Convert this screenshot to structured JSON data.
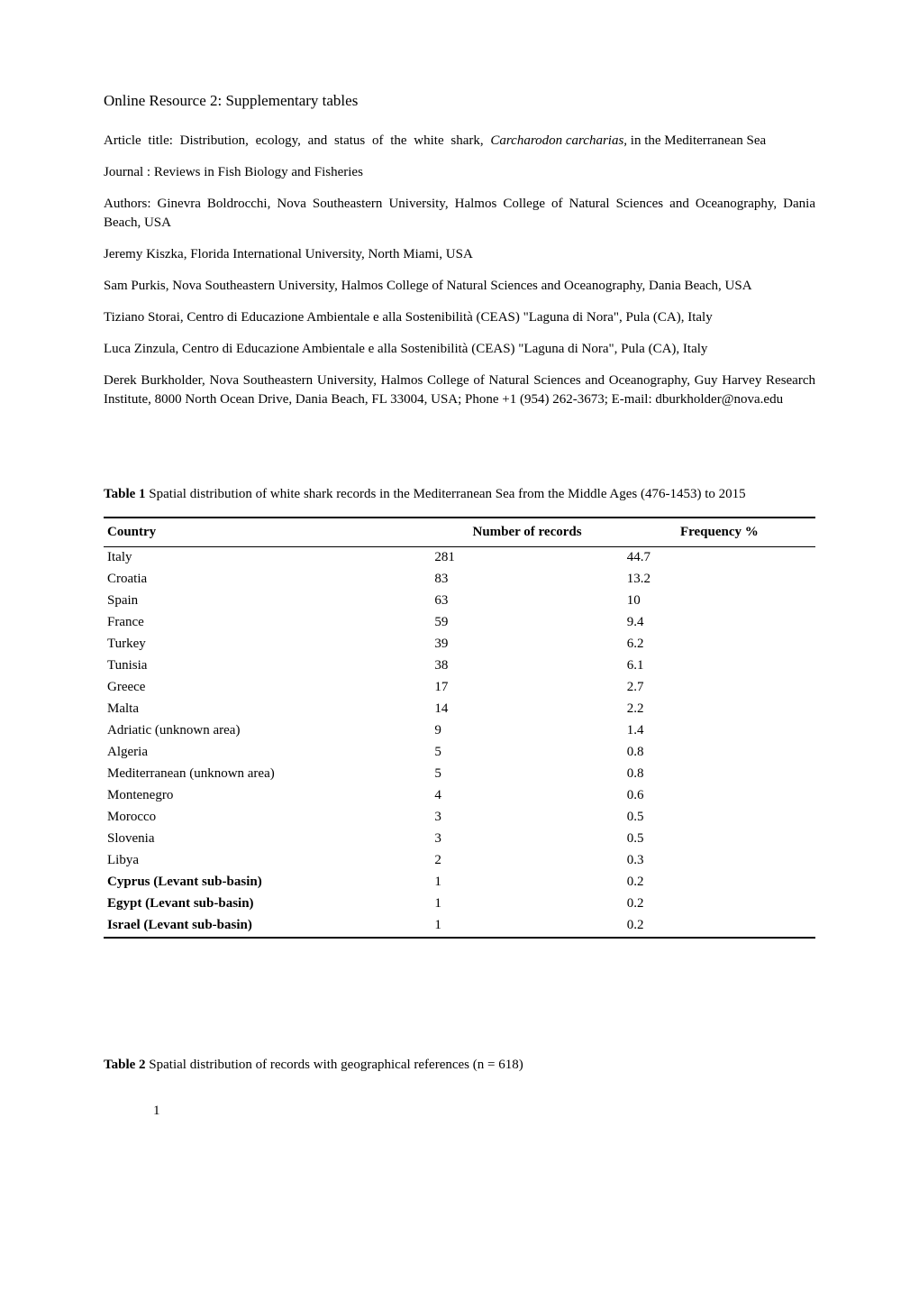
{
  "title": "Online Resource 2: Supplementary tables",
  "article_title_prefix": "Article title: Distribution, ecology, and status of the white shark, ",
  "article_species": "Carcharodon carcharias,",
  "article_title_suffix": " in the Mediterranean Sea",
  "journal": "Journal : Reviews in Fish Biology and Fisheries",
  "authors_line": "Authors: Ginevra Boldrocchi, Nova Southeastern University, Halmos College of Natural Sciences and Oceanography, Dania Beach, USA",
  "author2": "Jeremy Kiszka, Florida International University, North Miami, USA",
  "author3": "Sam Purkis, Nova Southeastern University, Halmos College of Natural Sciences and Oceanography, Dania Beach, USA",
  "author4": "Tiziano Storai, Centro di Educazione Ambientale e alla Sostenibilità (CEAS) \"Laguna di Nora\", Pula (CA), Italy",
  "author5": "Luca Zinzula, Centro di Educazione Ambientale e alla Sostenibilità (CEAS) \"Laguna di Nora\", Pula (CA), Italy",
  "author6": "Derek Burkholder, Nova Southeastern University, Halmos College of Natural Sciences and Oceanography, Guy Harvey Research Institute, 8000 North Ocean Drive, Dania Beach, FL 33004, USA; Phone +1 (954) 262-3673; E-mail: dburkholder@nova.edu",
  "table1_caption_label": "Table 1",
  "table1_caption_text": " Spatial distribution of white shark records in the Mediterranean Sea from the Middle Ages (476-1453) to 2015",
  "table1": {
    "headers": {
      "country": "Country",
      "records": "Number of records",
      "freq": "Frequency %"
    },
    "rows": [
      {
        "country": "Italy",
        "records": "281",
        "freq": "44.7",
        "bold": false
      },
      {
        "country": "Croatia",
        "records": "83",
        "freq": "13.2",
        "bold": false
      },
      {
        "country": "Spain",
        "records": "63",
        "freq": "10",
        "bold": false
      },
      {
        "country": "France",
        "records": "59",
        "freq": "9.4",
        "bold": false
      },
      {
        "country": "Turkey",
        "records": "39",
        "freq": "6.2",
        "bold": false
      },
      {
        "country": "Tunisia",
        "records": "38",
        "freq": "6.1",
        "bold": false
      },
      {
        "country": "Greece",
        "records": "17",
        "freq": "2.7",
        "bold": false
      },
      {
        "country": "Malta",
        "records": "14",
        "freq": "2.2",
        "bold": false
      },
      {
        "country": "Adriatic (unknown area)",
        "records": "9",
        "freq": "1.4",
        "bold": false
      },
      {
        "country": "Algeria",
        "records": "5",
        "freq": "0.8",
        "bold": false
      },
      {
        "country": "Mediterranean (unknown area)",
        "records": "5",
        "freq": "0.8",
        "bold": false
      },
      {
        "country": "Montenegro",
        "records": "4",
        "freq": "0.6",
        "bold": false
      },
      {
        "country": "Morocco",
        "records": "3",
        "freq": "0.5",
        "bold": false
      },
      {
        "country": "Slovenia",
        "records": "3",
        "freq": "0.5",
        "bold": false
      },
      {
        "country": "Libya",
        "records": "2",
        "freq": "0.3",
        "bold": false
      },
      {
        "country": "Cyprus (Levant sub-basin)",
        "records": "1",
        "freq": "0.2",
        "bold": true
      },
      {
        "country": "Egypt (Levant sub-basin)",
        "records": "1",
        "freq": "0.2",
        "bold": true
      },
      {
        "country": "Israel (Levant sub-basin)",
        "records": "1",
        "freq": "0.2",
        "bold": true
      }
    ]
  },
  "table2_caption_label": "Table 2",
  "table2_caption_text": " Spatial distribution of records with geographical references (n = 618)",
  "page_number": "1"
}
